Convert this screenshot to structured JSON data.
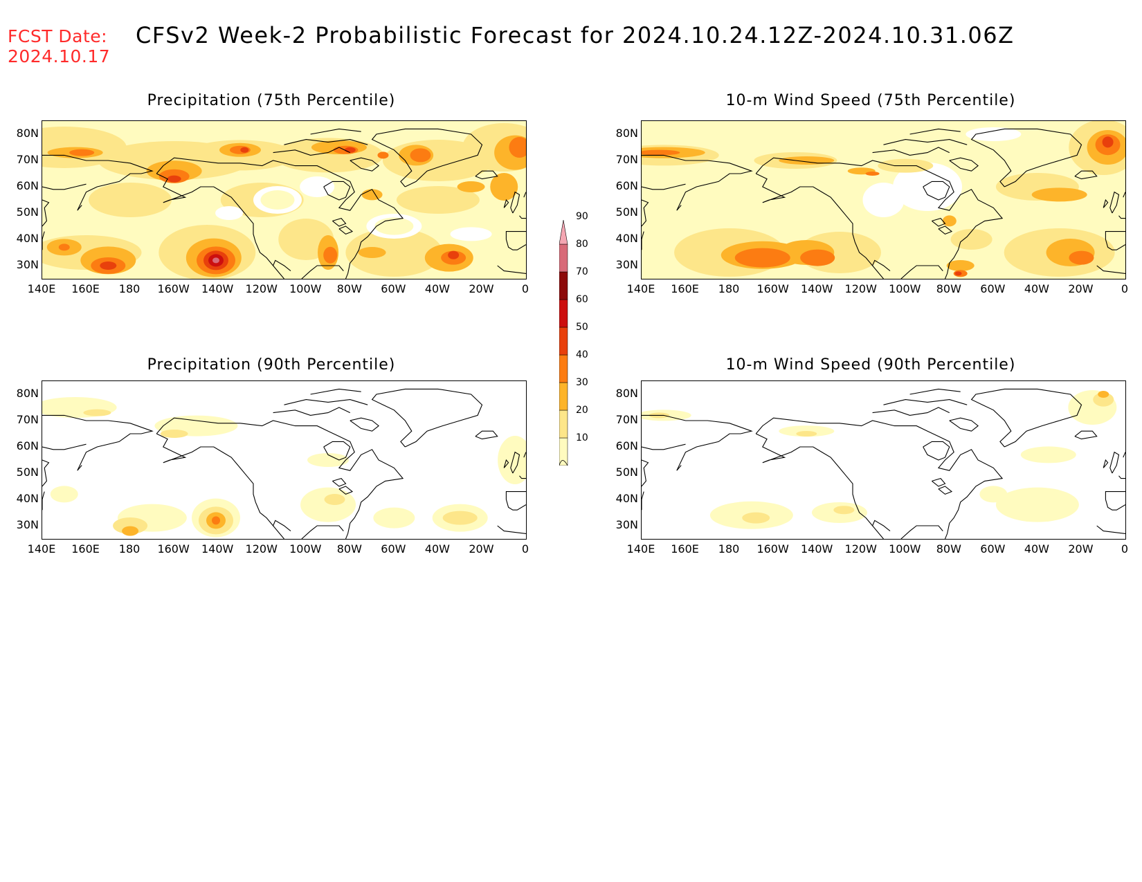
{
  "header": {
    "fcst_label": "FCST Date:",
    "fcst_date": "2024.10.17",
    "title": "CFSv2 Week-2 Probabilistic Forecast for 2024.10.24.12Z-2024.10.31.06Z"
  },
  "axes": {
    "lat_labels": [
      "80N",
      "70N",
      "60N",
      "50N",
      "40N",
      "30N"
    ],
    "lon_labels": [
      "140E",
      "160E",
      "180",
      "160W",
      "140W",
      "120W",
      "100W",
      "80W",
      "60W",
      "40W",
      "20W",
      "0"
    ]
  },
  "panels": [
    {
      "title": "Precipitation (75th Percentile)"
    },
    {
      "title": "10-m Wind Speed (75th Percentile)"
    },
    {
      "title": "Precipitation (90th Percentile)"
    },
    {
      "title": "10-m Wind Speed (90th Percentile)"
    }
  ],
  "colorbar": {
    "levels": [
      "90",
      "80",
      "70",
      "60",
      "50",
      "40",
      "30",
      "20",
      "10"
    ],
    "colors": {
      "10": "#fffbbf",
      "20": "#fde68a",
      "30": "#fdb42a",
      "40": "#fc7c12",
      "50": "#e8400c",
      "60": "#cc0f0f",
      "70": "#8c0a0a",
      "80": "#d86a78",
      "90": "#f4a6b2"
    }
  }
}
